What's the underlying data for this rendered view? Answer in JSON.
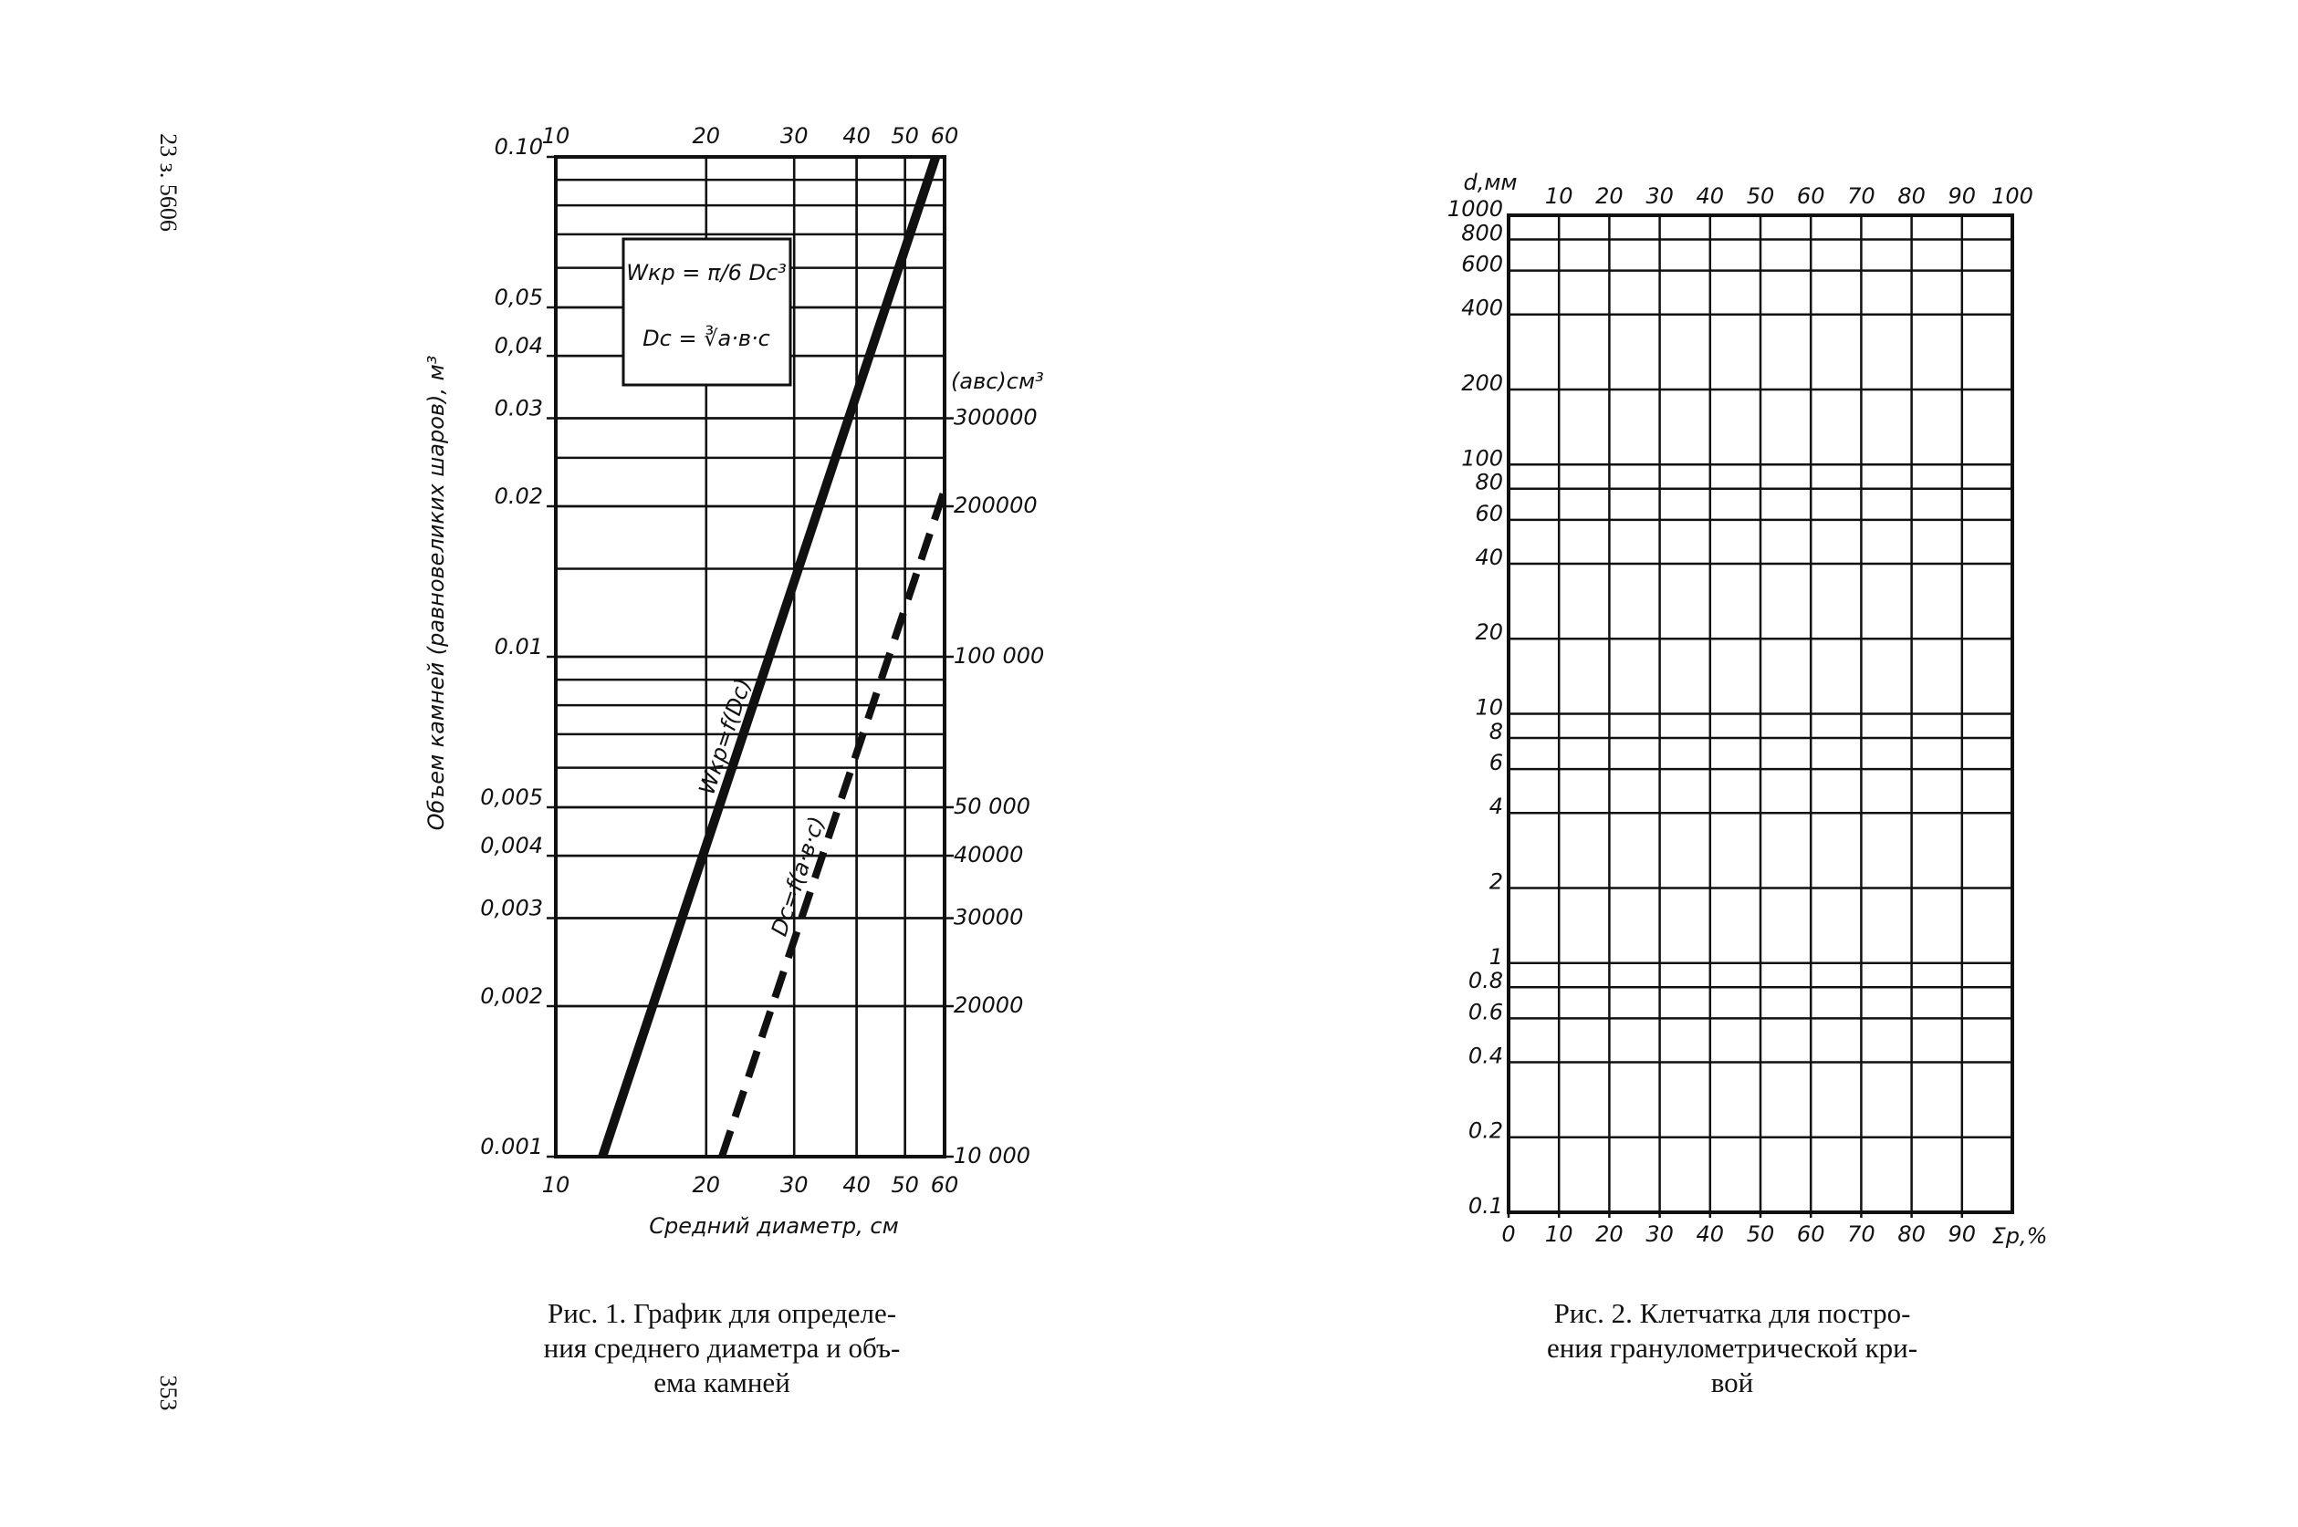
{
  "page": {
    "margin_note": "23 з. 5606",
    "page_number": "353"
  },
  "chart_data": [
    {
      "type": "line",
      "log_x": true,
      "log_y": true,
      "grid": true,
      "title": [
        "Рис. 1. График для определе-",
        "ния среднего диаметра и объ-",
        "ема камней"
      ],
      "x_label": "Средний диаметр, см",
      "y_label": "Объем камней (равновеликих шаров), м³",
      "y2_label": "(авс)см³",
      "annotations": [
        "Wкр = π/6 Dc³",
        "Dc = ∛a·в·c"
      ],
      "xlim": [
        10,
        60
      ],
      "xticks": [
        10,
        20,
        30,
        40,
        50,
        60
      ],
      "ylim": [
        0.001,
        0.1
      ],
      "yticks": [
        0.001,
        {
          "value": 0.002,
          "label": "0,002"
        },
        {
          "value": 0.003,
          "label": "0,003"
        },
        {
          "value": 0.004,
          "label": "0,004"
        },
        {
          "value": 0.005,
          "label": "0,005"
        },
        0.01,
        0.02,
        0.03,
        {
          "value": 0.04,
          "label": "0,04"
        },
        {
          "value": 0.05,
          "label": "0,05"
        },
        {
          "value": 0.1,
          "label": "0.10"
        }
      ],
      "y2lim": [
        10000,
        1000000
      ],
      "y2ticks": [
        {
          "value": 10000,
          "label": "10 000"
        },
        20000,
        30000,
        40000,
        {
          "value": 50000,
          "label": "50 000"
        },
        {
          "value": 100000,
          "label": "100 000"
        },
        200000,
        300000
      ],
      "series": [
        {
          "name": "Wкр=f(Dc)",
          "color": "#111111",
          "line_style": "solid",
          "x": [
            12.4,
            57.6
          ],
          "values": [
            0.001,
            0.1
          ]
        },
        {
          "name": "Dc=f(a·в·c)",
          "color": "#111111",
          "line_style": "dashed",
          "axis": "y2",
          "x": [
            21.5,
            60
          ],
          "values": [
            10000,
            216000
          ]
        }
      ]
    },
    {
      "type": "grid",
      "log_y": true,
      "grid": true,
      "title": [
        "Рис. 2. Клетчатка для постро-",
        "ения гранулометрической кри-",
        "вой"
      ],
      "x_label": "Σр,%",
      "y_label": "d,мм",
      "xlim": [
        0,
        100
      ],
      "xticks": [
        0,
        10,
        20,
        30,
        40,
        50,
        60,
        70,
        80,
        90
      ],
      "xticks_top": [
        10,
        20,
        30,
        40,
        50,
        60,
        70,
        80,
        90,
        100
      ],
      "ylim": [
        0.1,
        1000
      ],
      "yticks": [
        0.1,
        0.2,
        0.4,
        0.6,
        0.8,
        1,
        2,
        4,
        6,
        8,
        10,
        20,
        40,
        60,
        80,
        100,
        200,
        400,
        600,
        800,
        1000
      ]
    }
  ]
}
